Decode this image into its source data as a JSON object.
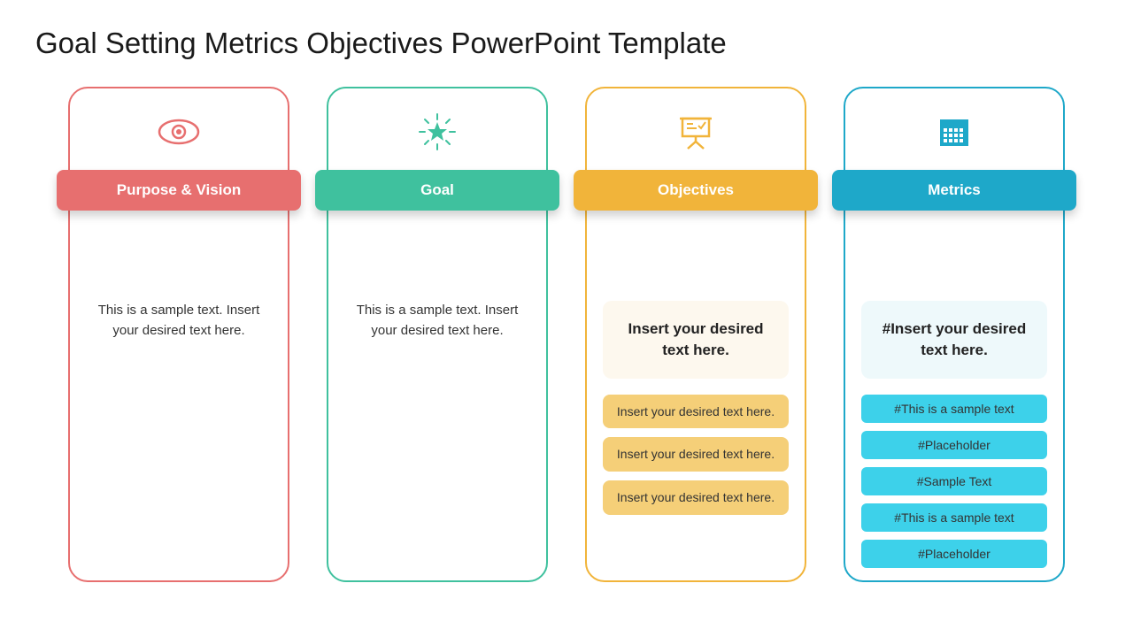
{
  "title": "Goal Setting Metrics Objectives PowerPoint Template",
  "colors": {
    "c1_border": "#e76f6f",
    "c1_label": "#e76f6f",
    "c2_border": "#3fc19e",
    "c2_label": "#3fc19e",
    "c3_border": "#f1b43a",
    "c3_label": "#f1b43a",
    "c4_border": "#1ea8c9",
    "c4_label": "#1ea8c9",
    "c3_highlight": "#fdf8ee",
    "c3_pill": "#f5cf78",
    "c4_highlight": "#eef9fb",
    "c4_chip": "#3dd1ea"
  },
  "card1": {
    "label": "Purpose & Vision",
    "text": "This is a sample text. Insert your desired text here."
  },
  "card2": {
    "label": "Goal",
    "text": "This is a sample text. Insert your desired text here."
  },
  "card3": {
    "label": "Objectives",
    "highlight": "Insert your desired text here.",
    "items": [
      "Insert your desired text here.",
      "Insert your desired text here.",
      "Insert your desired text here."
    ]
  },
  "card4": {
    "label": "Metrics",
    "highlight": "#Insert your desired text here.",
    "items": [
      "#This is a sample text",
      "#Placeholder",
      "#Sample Text",
      "#This is a sample text",
      "#Placeholder"
    ]
  }
}
